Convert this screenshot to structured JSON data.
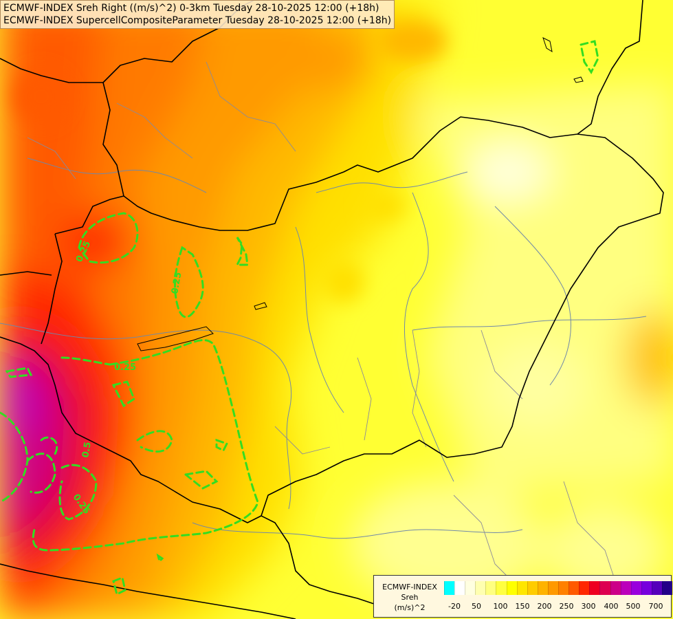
{
  "title": {
    "line1": "ECMWF-INDEX Sreh Right ((m/s)^2) 0-3km Tuesday 28-10-2025 12:00 (+18h)",
    "line2": "ECMWF-INDEX SupercellCompositeParameter Tuesday 28-10-2025 12:00 (+18h)"
  },
  "contour_labels": [
    "0.25",
    "0.25",
    "0.25",
    "0.5",
    "0.25"
  ],
  "legend": {
    "line1": "ECMWF-INDEX",
    "line2": "Sreh",
    "line3": "(m/s)^2",
    "colors": [
      "#00ffff",
      "#ffffff",
      "#ffffe0",
      "#ffffb0",
      "#ffff80",
      "#ffff40",
      "#ffff00",
      "#ffe600",
      "#ffcc00",
      "#ffb300",
      "#ff9900",
      "#ff8000",
      "#ff5a00",
      "#ff2800",
      "#ee0020",
      "#dd0050",
      "#cc0088",
      "#bb00bb",
      "#9900dd",
      "#7700dd",
      "#5500bb",
      "#220088"
    ],
    "ticks": [
      "-20",
      "50",
      "100",
      "150",
      "200",
      "250",
      "300",
      "400",
      "500",
      "700"
    ]
  }
}
